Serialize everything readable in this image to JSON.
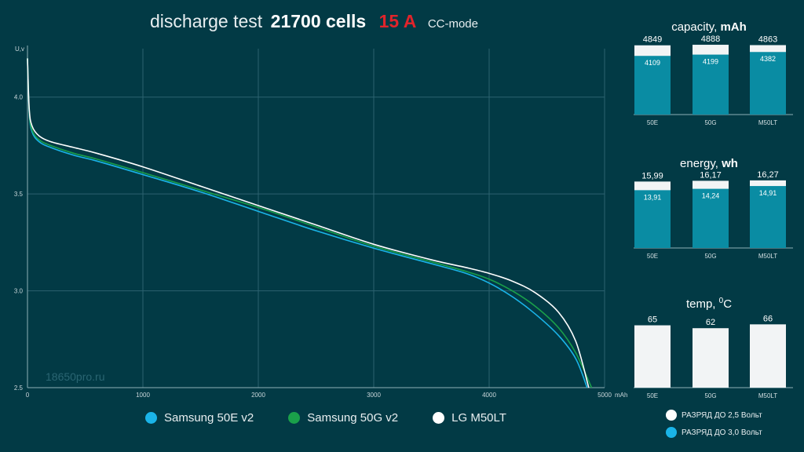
{
  "title": {
    "part1": "discharge test",
    "part2": "21700 cells",
    "part3": "15 A",
    "part4": "CC-mode"
  },
  "watermark": "18650pro.ru",
  "colors": {
    "background": "#023a45",
    "accent_red": "#e0242b",
    "samsung_50e": "#1ab4e8",
    "samsung_50g": "#1aa04a",
    "lg_m50lt": "#ffffff",
    "bar_light": "#f2f4f5",
    "bar_teal": "#0a8ca3"
  },
  "chart_data": [
    {
      "type": "line",
      "ylabel": "U,v",
      "xlabel": "mAh",
      "xlim": [
        0,
        5000
      ],
      "ylim": [
        2.5,
        4.25
      ],
      "xticks": [
        "0",
        "1000",
        "2000",
        "3000",
        "4000",
        "5000"
      ],
      "yticks": [
        "2.5",
        "3.0",
        "3.5",
        "4.0"
      ],
      "grid": true,
      "legend_position": "bottom",
      "series": [
        {
          "name": "Samsung 50E v2",
          "color": "#1ab4e8",
          "points": [
            [
              0,
              4.2
            ],
            [
              15,
              3.92
            ],
            [
              40,
              3.82
            ],
            [
              100,
              3.77
            ],
            [
              200,
              3.74
            ],
            [
              400,
              3.7
            ],
            [
              600,
              3.67
            ],
            [
              1000,
              3.6
            ],
            [
              1500,
              3.51
            ],
            [
              2000,
              3.41
            ],
            [
              2500,
              3.31
            ],
            [
              3000,
              3.22
            ],
            [
              3500,
              3.14
            ],
            [
              3800,
              3.09
            ],
            [
              4000,
              3.04
            ],
            [
              4200,
              2.97
            ],
            [
              4400,
              2.88
            ],
            [
              4600,
              2.77
            ],
            [
              4750,
              2.65
            ],
            [
              4849,
              2.5
            ]
          ]
        },
        {
          "name": "Samsung 50G v2",
          "color": "#1aa04a",
          "points": [
            [
              0,
              4.2
            ],
            [
              15,
              3.93
            ],
            [
              40,
              3.83
            ],
            [
              100,
              3.78
            ],
            [
              200,
              3.75
            ],
            [
              400,
              3.71
            ],
            [
              600,
              3.68
            ],
            [
              1000,
              3.61
            ],
            [
              1500,
              3.52
            ],
            [
              2000,
              3.43
            ],
            [
              2500,
              3.33
            ],
            [
              3000,
              3.23
            ],
            [
              3500,
              3.15
            ],
            [
              3800,
              3.1
            ],
            [
              4000,
              3.06
            ],
            [
              4200,
              3.0
            ],
            [
              4400,
              2.92
            ],
            [
              4600,
              2.81
            ],
            [
              4750,
              2.68
            ],
            [
              4888,
              2.5
            ]
          ]
        },
        {
          "name": "LG M50LT",
          "color": "#ffffff",
          "points": [
            [
              0,
              4.2
            ],
            [
              15,
              3.94
            ],
            [
              40,
              3.85
            ],
            [
              100,
              3.8
            ],
            [
              200,
              3.77
            ],
            [
              400,
              3.74
            ],
            [
              600,
              3.71
            ],
            [
              1000,
              3.64
            ],
            [
              1500,
              3.54
            ],
            [
              2000,
              3.44
            ],
            [
              2500,
              3.34
            ],
            [
              3000,
              3.24
            ],
            [
              3500,
              3.16
            ],
            [
              3800,
              3.12
            ],
            [
              4000,
              3.09
            ],
            [
              4200,
              3.05
            ],
            [
              4400,
              2.99
            ],
            [
              4600,
              2.89
            ],
            [
              4750,
              2.74
            ],
            [
              4863,
              2.5
            ]
          ]
        }
      ]
    },
    {
      "type": "bar",
      "title_light": "capacity, ",
      "title_bold": "mAh",
      "categories": [
        "50E",
        "50G",
        "M50LT"
      ],
      "ymax": 5000,
      "series": [
        {
          "name": "РАЗРЯД ДО 2,5 Вольт",
          "values": [
            4849,
            4888,
            4863
          ],
          "labels": [
            "4849",
            "4888",
            "4863"
          ]
        },
        {
          "name": "РАЗРЯД ДО 3,0 Вольт",
          "values": [
            4109,
            4199,
            4382
          ],
          "labels": [
            "4109",
            "4199",
            "4382"
          ]
        }
      ]
    },
    {
      "type": "bar",
      "title_light": "energy, ",
      "title_bold": "wh",
      "categories": [
        "50E",
        "50G",
        "M50LT"
      ],
      "ymax": 17,
      "series": [
        {
          "name": "РАЗРЯД ДО 2,5 Вольт",
          "values": [
            15.99,
            16.17,
            16.27
          ],
          "labels": [
            "15,99",
            "16,17",
            "16,27"
          ]
        },
        {
          "name": "РАЗРЯД ДО 3,0 Вольт",
          "values": [
            13.91,
            14.24,
            14.91
          ],
          "labels": [
            "13,91",
            "14,24",
            "14,91"
          ]
        }
      ]
    },
    {
      "type": "bar",
      "title_light": "temp, ",
      "title_sup": "0",
      "title_tail": "C",
      "categories": [
        "50E",
        "50G",
        "M50LT"
      ],
      "ymax": 72,
      "series": [
        {
          "name": "temp",
          "values": [
            65,
            62,
            66
          ],
          "labels": [
            "65",
            "62",
            "66"
          ]
        }
      ]
    }
  ],
  "legend": {
    "items": [
      "Samsung 50E v2",
      "Samsung 50G v2",
      "LG M50LT"
    ]
  },
  "bar_legend": {
    "item1": "РАЗРЯД ДО 2,5 Вольт",
    "item2": "РАЗРЯД ДО 3,0 Вольт"
  }
}
